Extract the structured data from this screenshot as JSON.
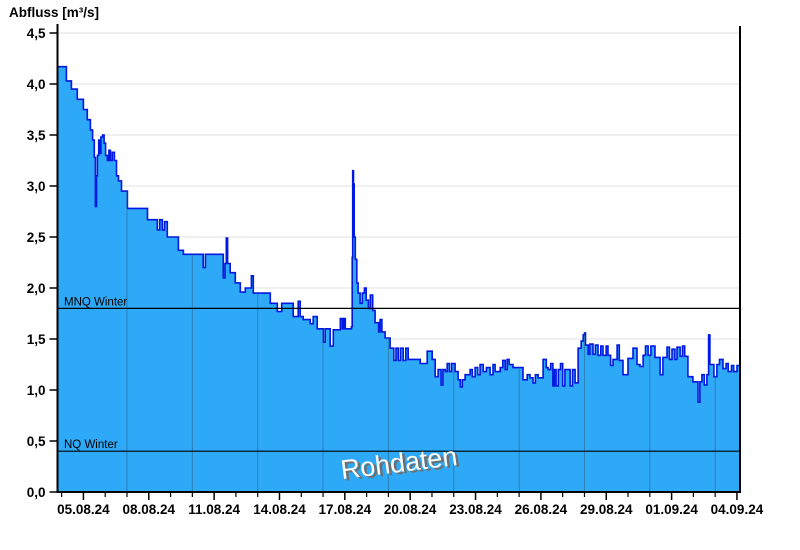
{
  "header": {
    "title": "Abfluss [m³/s]"
  },
  "watermark": "Rohdaten",
  "chart_data": {
    "type": "area",
    "title": "Abfluss [m³/s]",
    "ylabel": "Abfluss [m³/s]",
    "xlabel": "",
    "ylim": [
      0,
      4.5
    ],
    "xlim_days": [
      -1.19,
      30.14
    ],
    "grid": "horizontal-light, vertical-inside-area",
    "legend_position": "none",
    "y_ticks": [
      {
        "value": 0.0,
        "label": "0,0"
      },
      {
        "value": 0.5,
        "label": "0,5"
      },
      {
        "value": 1.0,
        "label": "1,0"
      },
      {
        "value": 1.5,
        "label": "1,5"
      },
      {
        "value": 2.0,
        "label": "2,0"
      },
      {
        "value": 2.5,
        "label": "2,5"
      },
      {
        "value": 3.0,
        "label": "3,0"
      },
      {
        "value": 3.5,
        "label": "3,5"
      },
      {
        "value": 4.0,
        "label": "4,0"
      },
      {
        "value": 4.5,
        "label": "4,5"
      }
    ],
    "x_ticks_major": [
      {
        "day": 0,
        "label": "05.08.24"
      },
      {
        "day": 3,
        "label": "08.08.24"
      },
      {
        "day": 6,
        "label": "11.08.24"
      },
      {
        "day": 9,
        "label": "14.08.24"
      },
      {
        "day": 12,
        "label": "17.08.24"
      },
      {
        "day": 15,
        "label": "20.08.24"
      },
      {
        "day": 18,
        "label": "23.08.24"
      },
      {
        "day": 21,
        "label": "26.08.24"
      },
      {
        "day": 24,
        "label": "29.08.24"
      },
      {
        "day": 27,
        "label": "01.09.24"
      },
      {
        "day": 30,
        "label": "04.09.24"
      }
    ],
    "x_minor_day_start": -1,
    "x_minor_day_end": 30,
    "vgrid_days": [
      2,
      5,
      8,
      11,
      14,
      17,
      20,
      23,
      26,
      29
    ],
    "reference_lines": [
      {
        "label": "MNQ Winter",
        "value": 1.8
      },
      {
        "label": "NQ Winter",
        "value": 0.4
      }
    ],
    "colors": {
      "fill": "#2EA9F8",
      "line": "#0018E0",
      "axis": "#000000",
      "grid": "#E7E7E7",
      "vgrid": "#2B5F80",
      "reference": "#000000",
      "watermark": "#FCFCFC",
      "watermark_shadow": "#6E6E6E"
    },
    "series": [
      {
        "name": "Rohdaten",
        "unit": "m³/s",
        "points": [
          [
            -1.15,
            4.17
          ],
          [
            -0.78,
            4.03
          ],
          [
            -0.55,
            3.95
          ],
          [
            -0.28,
            3.85
          ],
          [
            0,
            3.75
          ],
          [
            0.18,
            3.65
          ],
          [
            0.32,
            3.55
          ],
          [
            0.42,
            3.45
          ],
          [
            0.5,
            3.28
          ],
          [
            0.55,
            2.8
          ],
          [
            0.6,
            3.1
          ],
          [
            0.64,
            3.3
          ],
          [
            0.7,
            3.45
          ],
          [
            0.75,
            3.32
          ],
          [
            0.8,
            3.48
          ],
          [
            0.88,
            3.5
          ],
          [
            0.95,
            3.42
          ],
          [
            1.02,
            3.3
          ],
          [
            1.1,
            3.25
          ],
          [
            1.17,
            3.35
          ],
          [
            1.24,
            3.25
          ],
          [
            1.32,
            3.33
          ],
          [
            1.42,
            3.25
          ],
          [
            1.52,
            3.1
          ],
          [
            1.61,
            3.05
          ],
          [
            1.75,
            2.95
          ],
          [
            2.02,
            2.78
          ],
          [
            2.94,
            2.67
          ],
          [
            3.39,
            2.57
          ],
          [
            3.5,
            2.67
          ],
          [
            3.62,
            2.57
          ],
          [
            3.72,
            2.65
          ],
          [
            3.85,
            2.5
          ],
          [
            4.36,
            2.37
          ],
          [
            4.59,
            2.33
          ],
          [
            5.3,
            2.33
          ],
          [
            5.5,
            2.2
          ],
          [
            5.6,
            2.33
          ],
          [
            6.2,
            2.33
          ],
          [
            6.42,
            2.1
          ],
          [
            6.5,
            2.24
          ],
          [
            6.56,
            2.49
          ],
          [
            6.62,
            2.24
          ],
          [
            6.74,
            2.15
          ],
          [
            6.97,
            2.05
          ],
          [
            7.2,
            1.96
          ],
          [
            7.43,
            2.0
          ],
          [
            7.71,
            2.12
          ],
          [
            7.8,
            1.95
          ],
          [
            8.3,
            1.95
          ],
          [
            8.58,
            1.85
          ],
          [
            8.9,
            1.77
          ],
          [
            9.1,
            1.85
          ],
          [
            9.63,
            1.72
          ],
          [
            9.86,
            1.87
          ],
          [
            9.95,
            1.72
          ],
          [
            10.09,
            1.69
          ],
          [
            10.41,
            1.65
          ],
          [
            10.55,
            1.72
          ],
          [
            10.73,
            1.6
          ],
          [
            11.01,
            1.47
          ],
          [
            11.1,
            1.6
          ],
          [
            11.33,
            1.43
          ],
          [
            11.47,
            1.59
          ],
          [
            11.79,
            1.7
          ],
          [
            11.88,
            1.6
          ],
          [
            11.95,
            1.7
          ],
          [
            12.02,
            1.6
          ],
          [
            12.3,
            1.62
          ],
          [
            12.34,
            2.3
          ],
          [
            12.36,
            3.15
          ],
          [
            12.4,
            3.02
          ],
          [
            12.43,
            2.5
          ],
          [
            12.48,
            2.28
          ],
          [
            12.55,
            2.05
          ],
          [
            12.61,
            1.95
          ],
          [
            12.7,
            1.85
          ],
          [
            12.8,
            1.95
          ],
          [
            12.9,
            2.0
          ],
          [
            12.98,
            1.88
          ],
          [
            13.08,
            1.8
          ],
          [
            13.17,
            1.93
          ],
          [
            13.28,
            1.78
          ],
          [
            13.39,
            1.66
          ],
          [
            13.55,
            1.57
          ],
          [
            13.62,
            1.69
          ],
          [
            13.7,
            1.57
          ],
          [
            13.85,
            1.51
          ],
          [
            14.08,
            1.41
          ],
          [
            14.25,
            1.29
          ],
          [
            14.35,
            1.41
          ],
          [
            14.45,
            1.29
          ],
          [
            14.55,
            1.41
          ],
          [
            14.68,
            1.29
          ],
          [
            14.8,
            1.41
          ],
          [
            14.91,
            1.3
          ],
          [
            15.14,
            1.3
          ],
          [
            15.46,
            1.26
          ],
          [
            15.78,
            1.38
          ],
          [
            16.01,
            1.3
          ],
          [
            16.15,
            1.13
          ],
          [
            16.28,
            1.2
          ],
          [
            16.42,
            1.05
          ],
          [
            16.5,
            1.2
          ],
          [
            16.61,
            1.18
          ],
          [
            16.7,
            1.26
          ],
          [
            16.8,
            1.18
          ],
          [
            16.9,
            1.26
          ],
          [
            17.06,
            1.18
          ],
          [
            17.2,
            1.1
          ],
          [
            17.3,
            1.03
          ],
          [
            17.39,
            1.1
          ],
          [
            17.52,
            1.15
          ],
          [
            17.75,
            1.2
          ],
          [
            17.85,
            1.13
          ],
          [
            17.98,
            1.22
          ],
          [
            18.1,
            1.15
          ],
          [
            18.21,
            1.25
          ],
          [
            18.35,
            1.18
          ],
          [
            18.5,
            1.22
          ],
          [
            18.67,
            1.15
          ],
          [
            18.8,
            1.25
          ],
          [
            18.9,
            1.18
          ],
          [
            19.13,
            1.22
          ],
          [
            19.25,
            1.29
          ],
          [
            19.36,
            1.2
          ],
          [
            19.45,
            1.3
          ],
          [
            19.54,
            1.25
          ],
          [
            19.72,
            1.22
          ],
          [
            19.95,
            1.22
          ],
          [
            20.18,
            1.1
          ],
          [
            20.37,
            1.15
          ],
          [
            20.5,
            1.12
          ],
          [
            20.64,
            1.07
          ],
          [
            20.75,
            1.15
          ],
          [
            20.87,
            1.12
          ],
          [
            21.1,
            1.3
          ],
          [
            21.25,
            1.22
          ],
          [
            21.33,
            1.2
          ],
          [
            21.45,
            1.26
          ],
          [
            21.55,
            1.04
          ],
          [
            21.62,
            1.2
          ],
          [
            21.7,
            1.04
          ],
          [
            21.8,
            1.2
          ],
          [
            21.9,
            1.26
          ],
          [
            22.0,
            1.04
          ],
          [
            22.1,
            1.2
          ],
          [
            22.34,
            1.04
          ],
          [
            22.45,
            1.2
          ],
          [
            22.57,
            1.07
          ],
          [
            22.71,
            1.41
          ],
          [
            22.85,
            1.48
          ],
          [
            22.94,
            1.54
          ],
          [
            23.0,
            1.56
          ],
          [
            23.05,
            1.44
          ],
          [
            23.17,
            1.35
          ],
          [
            23.25,
            1.45
          ],
          [
            23.39,
            1.35
          ],
          [
            23.5,
            1.44
          ],
          [
            23.62,
            1.34
          ],
          [
            23.75,
            1.43
          ],
          [
            23.85,
            1.34
          ],
          [
            24.0,
            1.43
          ],
          [
            24.08,
            1.34
          ],
          [
            24.2,
            1.24
          ],
          [
            24.31,
            1.3
          ],
          [
            24.5,
            1.44
          ],
          [
            24.6,
            1.29
          ],
          [
            24.77,
            1.15
          ],
          [
            25.0,
            1.31
          ],
          [
            25.23,
            1.41
          ],
          [
            25.41,
            1.25
          ],
          [
            25.55,
            1.23
          ],
          [
            25.69,
            1.34
          ],
          [
            25.8,
            1.43
          ],
          [
            25.92,
            1.34
          ],
          [
            26.05,
            1.43
          ],
          [
            26.24,
            1.32
          ],
          [
            26.47,
            1.15
          ],
          [
            26.6,
            1.32
          ],
          [
            26.79,
            1.42
          ],
          [
            26.9,
            1.3
          ],
          [
            27.02,
            1.4
          ],
          [
            27.15,
            1.3
          ],
          [
            27.25,
            1.42
          ],
          [
            27.39,
            1.33
          ],
          [
            27.5,
            1.43
          ],
          [
            27.6,
            1.33
          ],
          [
            27.75,
            1.13
          ],
          [
            27.98,
            1.08
          ],
          [
            28.21,
            0.88
          ],
          [
            28.3,
            1.08
          ],
          [
            28.39,
            1.15
          ],
          [
            28.5,
            1.05
          ],
          [
            28.62,
            1.15
          ],
          [
            28.7,
            1.54
          ],
          [
            28.76,
            1.25
          ],
          [
            28.94,
            1.13
          ],
          [
            29.08,
            1.25
          ],
          [
            29.2,
            1.3
          ],
          [
            29.36,
            1.21
          ],
          [
            29.5,
            1.26
          ],
          [
            29.6,
            1.18
          ],
          [
            29.75,
            1.24
          ],
          [
            29.85,
            1.18
          ],
          [
            30.0,
            1.24
          ],
          [
            30.14,
            1.2
          ]
        ]
      }
    ]
  }
}
